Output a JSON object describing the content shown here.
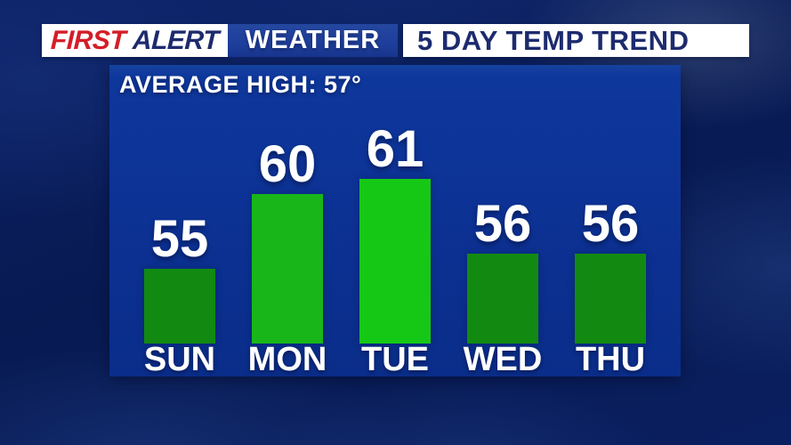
{
  "header": {
    "brand": {
      "first": "FIRST",
      "alert": "ALERT"
    },
    "weather_label": "WEATHER",
    "title": "5 DAY TEMP TREND"
  },
  "chart_data": {
    "type": "bar",
    "title": "5 DAY TEMP TREND",
    "annotation": "AVERAGE HIGH: 57°",
    "average_high": 57,
    "categories": [
      "SUN",
      "MON",
      "TUE",
      "WED",
      "THU"
    ],
    "values": [
      55,
      60,
      61,
      56,
      56
    ],
    "ylim": [
      50,
      62
    ],
    "baseline_value": 50,
    "pixels_per_degree": 16.8,
    "bar_colors": [
      "#128a12",
      "#19b619",
      "#16c816",
      "#128a12",
      "#128a12"
    ],
    "value_label_color": "#ffffff",
    "grid": false,
    "legend": false,
    "xlabel": "",
    "ylabel": ""
  },
  "colors": {
    "background_navy": "#081c56",
    "panel_blue": "#0c3193",
    "header_band_blue": "#1e3f9c",
    "brand_red": "#d41e28",
    "brand_navy": "#1d2b6e",
    "bar_green_dark": "#128a12",
    "bar_green_bright": "#17bb17",
    "text_white": "#ffffff"
  }
}
